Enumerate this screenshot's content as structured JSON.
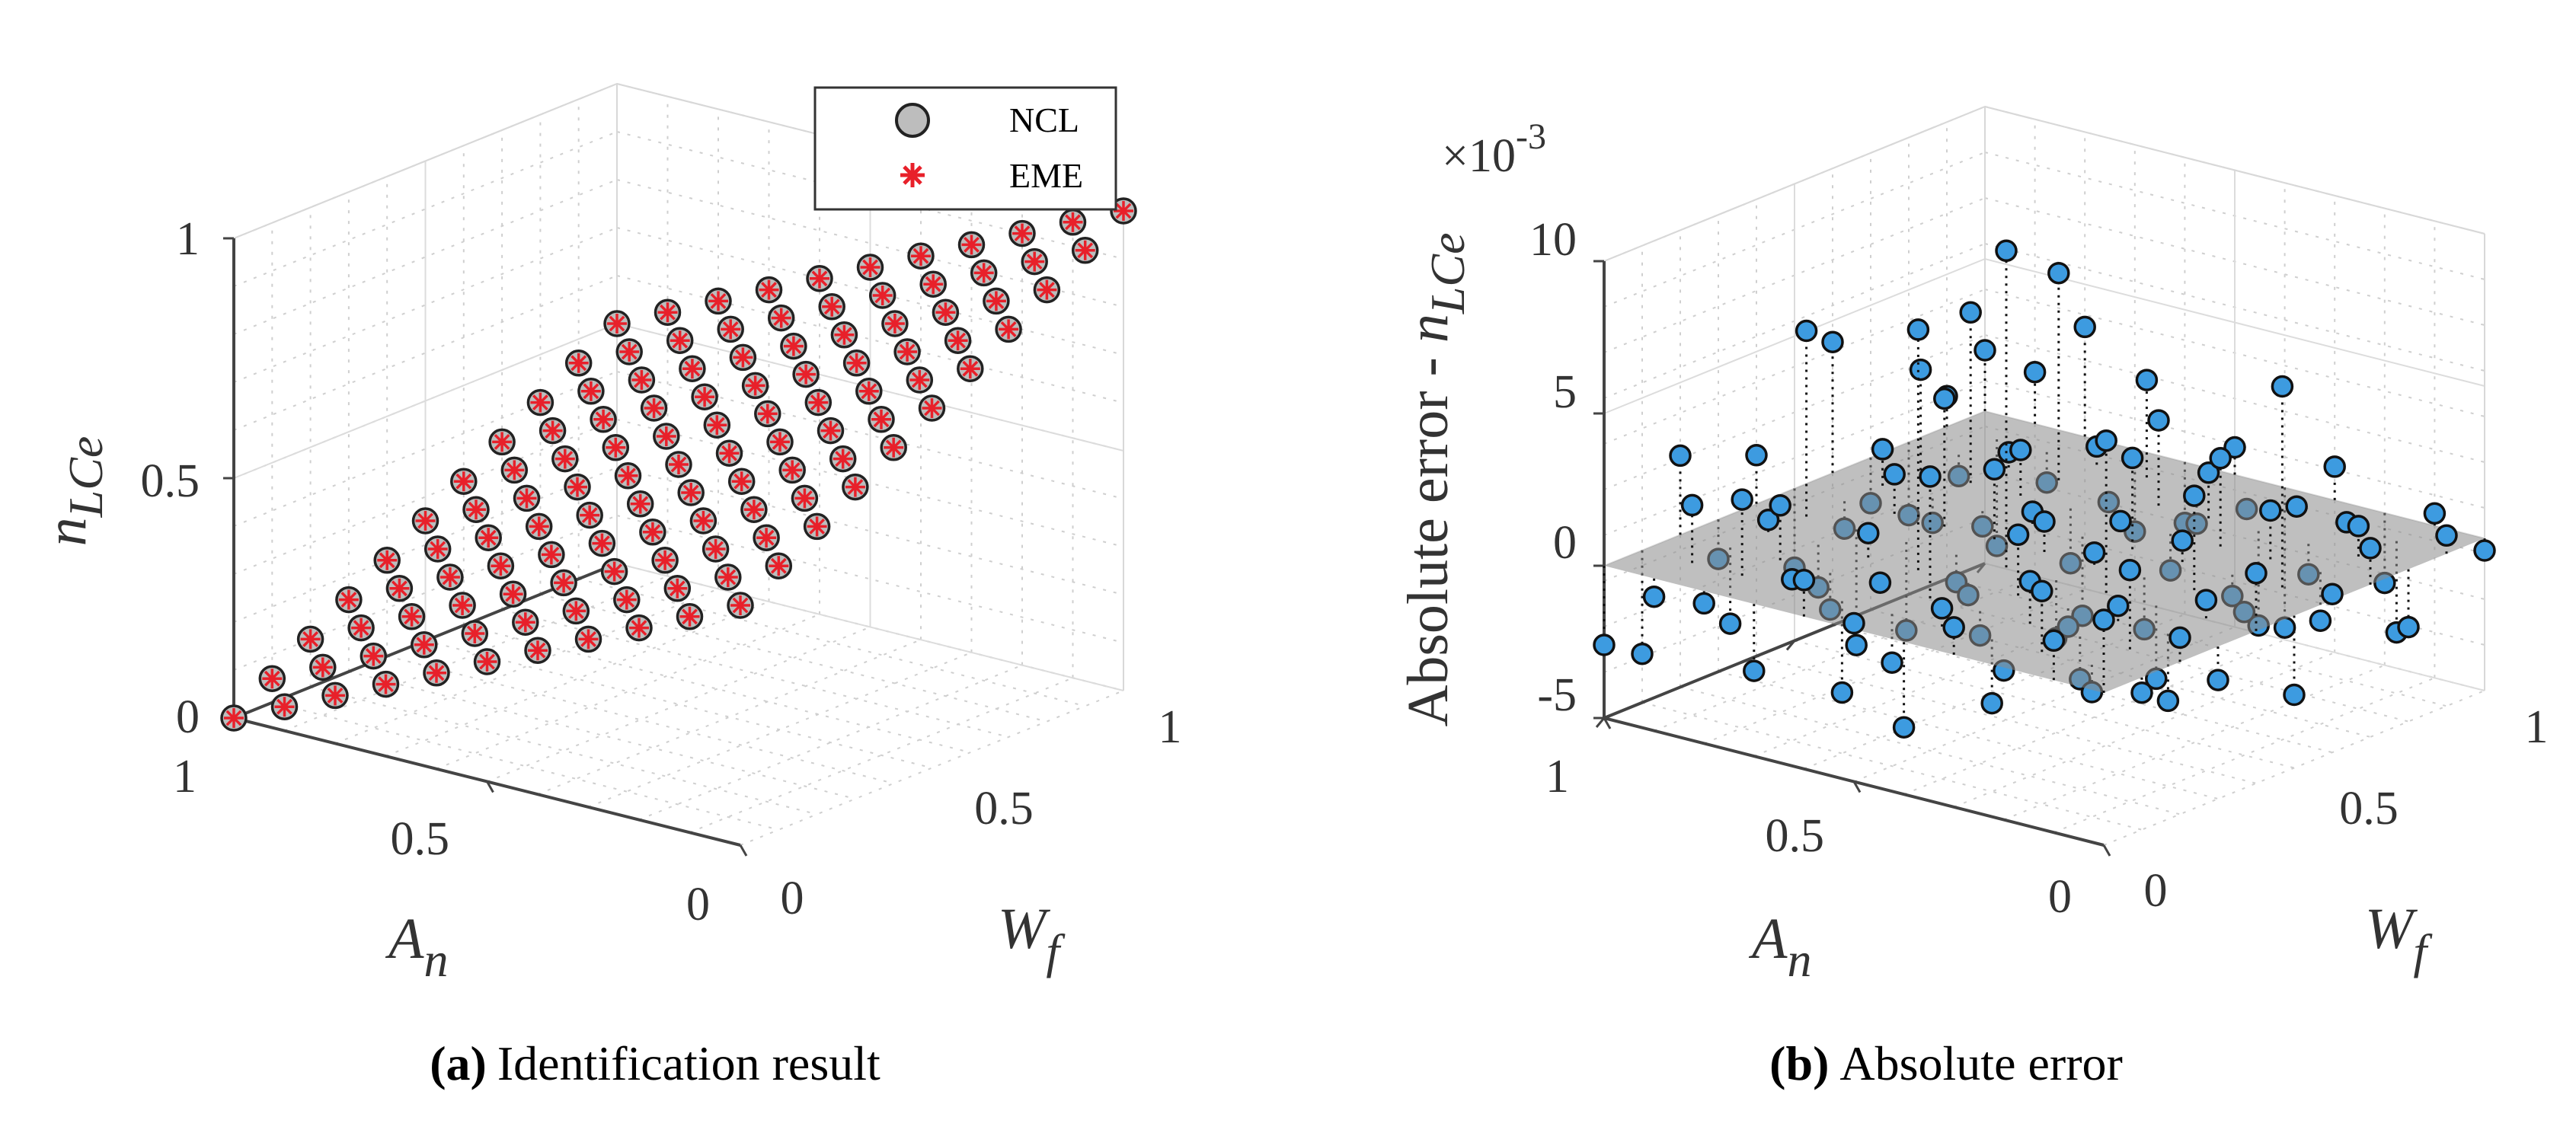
{
  "figure": {
    "panels": [
      {
        "caption_label": "(a)",
        "caption_text": "Identification result",
        "legend": [
          "NCL",
          "EME"
        ]
      },
      {
        "caption_label": "(b)",
        "caption_text": "Absolute error",
        "scale_prefix": "×10",
        "scale_exp": "-3"
      }
    ]
  },
  "chart_data": [
    {
      "type": "scatter",
      "title": "Identification result",
      "xlabel": "W_f",
      "ylabel": "A_n",
      "zlabel": "n_LCe",
      "x_ticks": [
        "0",
        "0.5",
        "1"
      ],
      "y_ticks": [
        "0",
        "0.5",
        "1"
      ],
      "z_ticks": [
        "0",
        "0.5",
        "1"
      ],
      "xlim": [
        0,
        1
      ],
      "ylim": [
        0,
        1
      ],
      "zlim": [
        0,
        1
      ],
      "grid": true,
      "legend_position": "top-right",
      "series": [
        {
          "name": "NCL",
          "marker": "circle",
          "color": "#bdbdbd",
          "edge": "#222222"
        },
        {
          "name": "EME",
          "marker": "asterisk",
          "color": "#e8202a"
        }
      ],
      "grid_levels": [
        0,
        0.1,
        0.2,
        0.3,
        0.4,
        0.5,
        0.6,
        0.7,
        0.8,
        0.9,
        1.0
      ],
      "z_formula": "n_LCe = (W_f + A_n) / 2 (both series coincide)"
    },
    {
      "type": "scatter",
      "title": "Absolute error",
      "xlabel": "W_f",
      "ylabel": "A_n",
      "zlabel": "Absolute error - n_LCe",
      "x_ticks": [
        "0",
        "0.5",
        "1"
      ],
      "y_ticks": [
        "0",
        "0.5",
        "1"
      ],
      "z_ticks": [
        "-5",
        "0",
        "5",
        "10"
      ],
      "z_scale": "1e-3",
      "xlim": [
        0,
        1
      ],
      "ylim": [
        0,
        1
      ],
      "zlim": [
        -5,
        10
      ],
      "grid": true,
      "zero_plane": true,
      "marker_color": "#3d9be0",
      "points": [
        [
          0.0,
          0.0,
          -2.6
        ],
        [
          0.0,
          0.1,
          -3.4
        ],
        [
          0.0,
          0.2,
          2.6
        ],
        [
          0.0,
          0.3,
          -1.3
        ],
        [
          0.0,
          0.4,
          1.6
        ],
        [
          0.0,
          0.5,
          -2.6
        ],
        [
          0.0,
          0.6,
          4.3
        ],
        [
          0.0,
          0.7,
          -1.5
        ],
        [
          0.0,
          0.8,
          -2.4
        ],
        [
          0.0,
          0.9,
          1.0
        ],
        [
          0.0,
          1.0,
          2.0
        ],
        [
          0.1,
          0.0,
          -0.6
        ],
        [
          0.1,
          0.1,
          1.9
        ],
        [
          0.1,
          0.2,
          -2.5
        ],
        [
          0.1,
          0.3,
          0.4
        ],
        [
          0.1,
          0.4,
          6.1
        ],
        [
          0.1,
          0.5,
          -0.9
        ],
        [
          0.1,
          0.6,
          1.2
        ],
        [
          0.1,
          0.7,
          3.3
        ],
        [
          0.1,
          0.8,
          -0.7
        ],
        [
          0.1,
          0.9,
          -3.5
        ],
        [
          0.1,
          1.0,
          1.7
        ],
        [
          0.2,
          0.0,
          -0.4
        ],
        [
          0.2,
          0.1,
          2.5
        ],
        [
          0.2,
          0.2,
          1.8
        ],
        [
          0.2,
          0.3,
          -1.4
        ],
        [
          0.2,
          0.4,
          -3.8
        ],
        [
          0.2,
          0.5,
          1.3
        ],
        [
          0.2,
          0.6,
          -0.8
        ],
        [
          0.2,
          0.7,
          5.6
        ],
        [
          0.2,
          0.8,
          0.5
        ],
        [
          0.2,
          0.9,
          -1.0
        ],
        [
          0.2,
          1.0,
          3.6
        ],
        [
          0.3,
          0.0,
          -2.2
        ],
        [
          0.3,
          0.1,
          0.3
        ],
        [
          0.3,
          0.2,
          -1.2
        ],
        [
          0.3,
          0.3,
          0.8
        ],
        [
          0.3,
          0.4,
          -2.9
        ],
        [
          0.3,
          0.5,
          4.2
        ],
        [
          0.3,
          0.6,
          -0.5
        ],
        [
          0.3,
          0.7,
          1.5
        ],
        [
          0.3,
          0.8,
          6.8
        ],
        [
          0.3,
          0.9,
          0.6
        ],
        [
          0.3,
          1.0,
          -2.7
        ],
        [
          0.4,
          0.0,
          1.2
        ],
        [
          0.4,
          0.1,
          -3.0
        ],
        [
          0.4,
          0.2,
          0.1
        ],
        [
          0.4,
          0.3,
          7.9
        ],
        [
          0.4,
          0.4,
          -0.9
        ],
        [
          0.4,
          0.5,
          2.3
        ],
        [
          0.4,
          0.6,
          0.4
        ],
        [
          0.4,
          0.7,
          -1.8
        ],
        [
          0.4,
          0.8,
          -0.3
        ],
        [
          0.4,
          0.9,
          3.2
        ],
        [
          0.4,
          1.0,
          -2.0
        ],
        [
          0.5,
          0.0,
          0.2
        ],
        [
          0.5,
          0.1,
          -1.6
        ],
        [
          0.5,
          0.2,
          4.0
        ],
        [
          0.5,
          0.3,
          -0.4
        ],
        [
          0.5,
          0.4,
          10.4
        ],
        [
          0.5,
          0.5,
          1.0
        ],
        [
          0.5,
          0.6,
          -2.6
        ],
        [
          0.5,
          0.7,
          0.0
        ],
        [
          0.5,
          0.8,
          2.8
        ],
        [
          0.5,
          0.9,
          -1.1
        ],
        [
          0.5,
          1.0,
          0.9
        ],
        [
          0.6,
          0.0,
          -2.8
        ],
        [
          0.6,
          0.1,
          0.6
        ],
        [
          0.6,
          0.2,
          -0.8
        ],
        [
          0.6,
          0.3,
          2.0
        ],
        [
          0.6,
          0.4,
          -1.9
        ],
        [
          0.6,
          0.5,
          0.4
        ],
        [
          0.6,
          0.6,
          3.0
        ],
        [
          0.6,
          0.7,
          -1.2
        ],
        [
          0.6,
          0.8,
          1.5
        ],
        [
          0.6,
          0.9,
          -0.2
        ],
        [
          0.6,
          1.0,
          -4.6
        ],
        [
          0.7,
          0.0,
          0.9
        ],
        [
          0.7,
          0.1,
          -2.1
        ],
        [
          0.7,
          0.2,
          1.4
        ],
        [
          0.7,
          0.3,
          -0.6
        ],
        [
          0.7,
          0.4,
          5.0
        ],
        [
          0.7,
          0.5,
          -1.7
        ],
        [
          0.7,
          0.6,
          0.7
        ],
        [
          0.7,
          0.7,
          2.9
        ],
        [
          0.7,
          0.8,
          -3.1
        ],
        [
          0.7,
          0.9,
          0.3
        ],
        [
          0.7,
          1.0,
          1.1
        ],
        [
          0.8,
          0.0,
          -0.1
        ],
        [
          0.8,
          0.1,
          2.0
        ],
        [
          0.8,
          0.2,
          -1.4
        ],
        [
          0.8,
          0.3,
          0.5
        ],
        [
          0.8,
          0.4,
          -2.4
        ],
        [
          0.8,
          0.5,
          3.1
        ],
        [
          0.8,
          0.6,
          -0.7
        ],
        [
          0.8,
          0.7,
          1.6
        ],
        [
          0.8,
          0.8,
          -1.0
        ],
        [
          0.8,
          0.9,
          0.2
        ],
        [
          0.8,
          1.0,
          -2.3
        ],
        [
          0.9,
          0.0,
          1.3
        ],
        [
          0.9,
          0.1,
          -0.9
        ],
        [
          0.9,
          0.2,
          2.6
        ],
        [
          0.9,
          0.3,
          -2.2
        ],
        [
          0.9,
          0.4,
          0.6
        ],
        [
          0.9,
          0.5,
          -0.3
        ],
        [
          0.9,
          0.6,
          6.6
        ],
        [
          0.9,
          0.7,
          -1.6
        ],
        [
          0.9,
          0.8,
          1.0
        ],
        [
          0.9,
          0.9,
          -3.0
        ],
        [
          0.9,
          1.0,
          0.4
        ],
        [
          1.0,
          0.0,
          2.4
        ],
        [
          1.0,
          0.1,
          -0.5
        ],
        [
          1.0,
          0.2,
          0.8
        ],
        [
          1.0,
          0.3,
          -1.1
        ],
        [
          1.0,
          0.4,
          1.9
        ],
        [
          1.0,
          0.5,
          -2.6
        ],
        [
          1.0,
          0.6,
          0.2
        ],
        [
          1.0,
          0.7,
          1.2
        ],
        [
          1.0,
          0.8,
          -1.9
        ],
        [
          1.0,
          0.9,
          0.6
        ],
        [
          1.0,
          1.0,
          -0.4
        ]
      ]
    }
  ]
}
